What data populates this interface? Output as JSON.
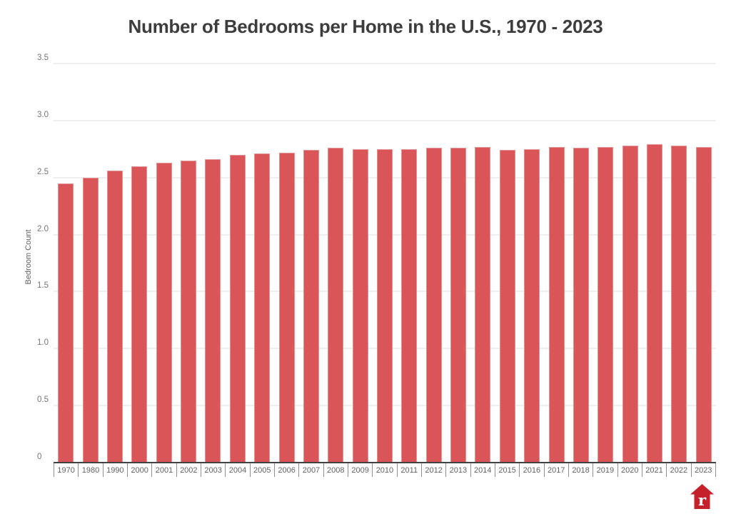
{
  "header": {
    "title": "Number of Bedrooms per Home in the U.S., 1970 - 2023"
  },
  "chart_data": {
    "type": "bar",
    "title": "Number of Bedrooms per Home in the U.S., 1970 - 2023",
    "categories": [
      "1970",
      "1980",
      "1990",
      "2000",
      "2001",
      "2002",
      "2003",
      "2004",
      "2005",
      "2006",
      "2007",
      "2008",
      "2009",
      "2010",
      "2011",
      "2012",
      "2013",
      "2014",
      "2015",
      "2016",
      "2017",
      "2018",
      "2019",
      "2020",
      "2021",
      "2022",
      "2023"
    ],
    "values": [
      2.45,
      2.5,
      2.56,
      2.6,
      2.63,
      2.65,
      2.66,
      2.7,
      2.71,
      2.72,
      2.74,
      2.76,
      2.75,
      2.75,
      2.75,
      2.76,
      2.76,
      2.77,
      2.74,
      2.75,
      2.77,
      2.76,
      2.77,
      2.78,
      2.79,
      2.78,
      2.77
    ],
    "xlabel": "",
    "ylabel": "Bedroom Count",
    "ylim": [
      0,
      3.5
    ],
    "yticks": [
      0,
      0.5,
      1.0,
      1.5,
      2.0,
      2.5,
      3.0,
      3.5
    ],
    "ytick_labels": [
      "0",
      "0.5",
      "1.0",
      "1.5",
      "2.0",
      "2.5",
      "3.0",
      "3.5"
    ],
    "grid": true,
    "legend": false,
    "bar_color": "#d95558",
    "gridline_color": "#eeeeee",
    "axis_color": "#424242",
    "tick_label_color": "#616161"
  },
  "branding": {
    "logo_name": "redfin-house-logo",
    "logo_color": "#c5212a",
    "logo_letter": "r"
  }
}
